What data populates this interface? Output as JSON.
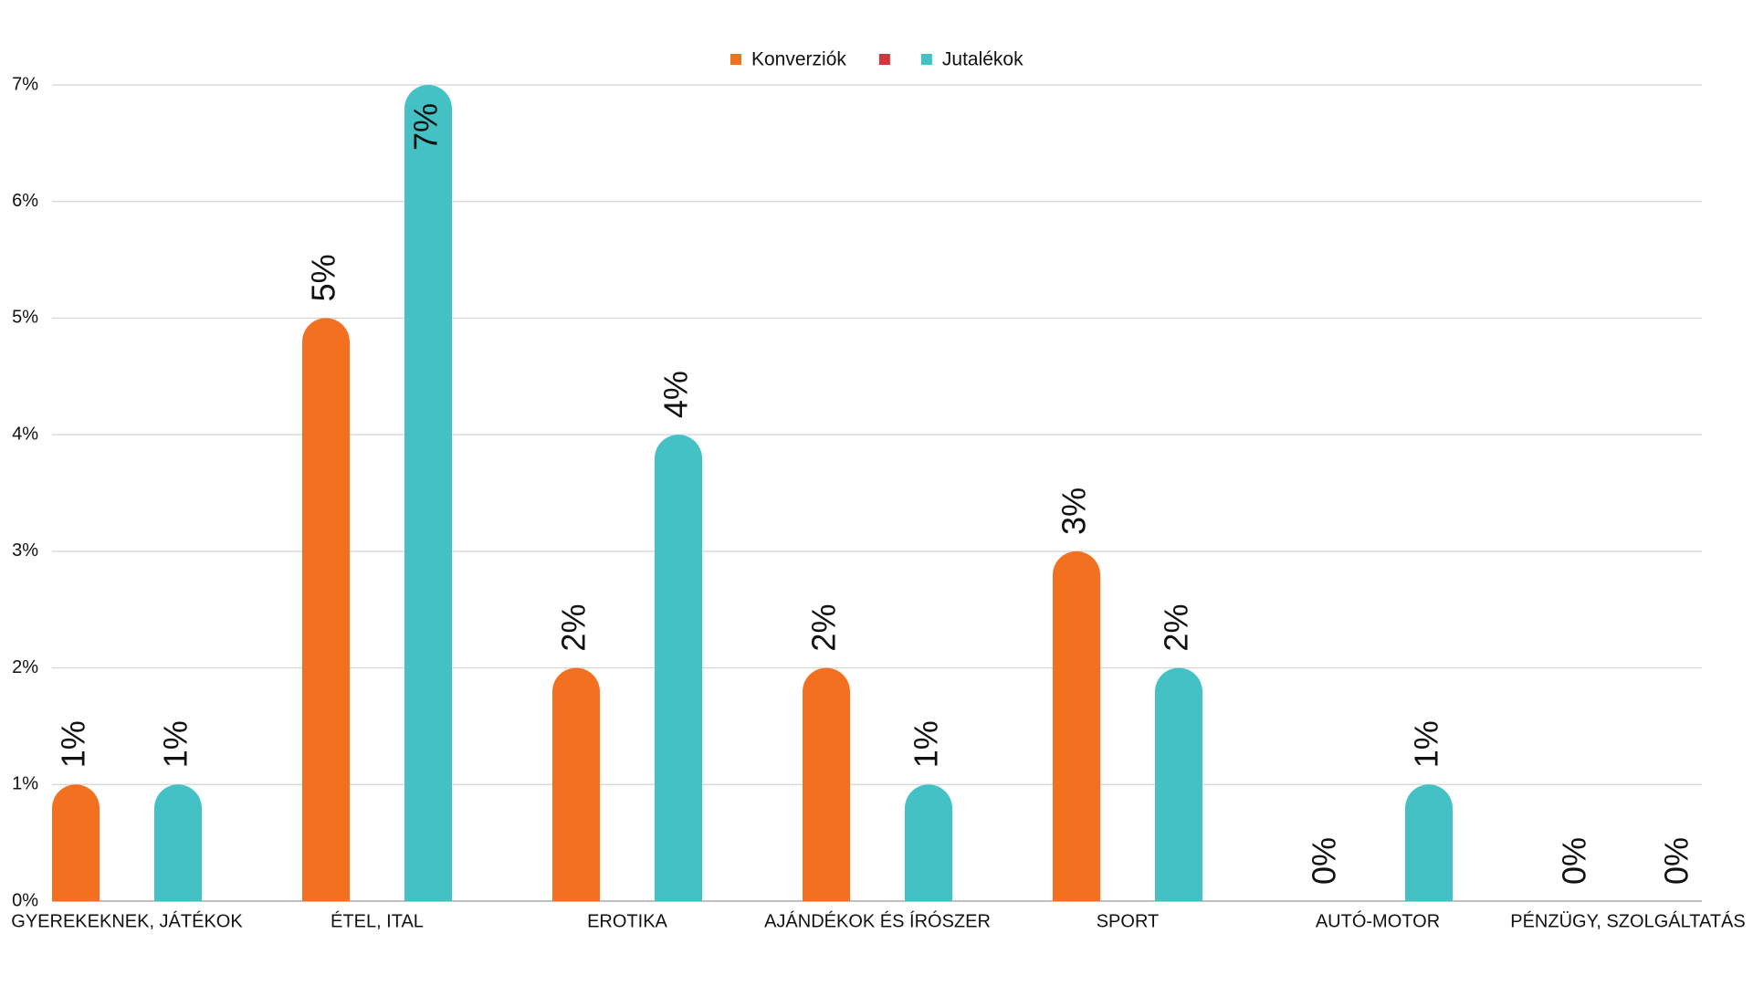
{
  "chart_data": {
    "type": "bar",
    "categories": [
      "GYEREKEKNEK, JÁTÉKOK",
      "ÉTEL, ITAL",
      "EROTIKA",
      "AJÁNDÉKOK ÉS ÍRÓSZER",
      "SPORT",
      "AUTÓ-MOTOR",
      "PÉNZÜGY, SZOLGÁLTATÁS"
    ],
    "series": [
      {
        "name": "Konverziók",
        "color": "#f37021",
        "values": [
          1,
          5,
          2,
          2,
          3,
          0,
          0
        ],
        "value_labels": [
          "1%",
          "5%",
          "2%",
          "2%",
          "3%",
          "0%",
          "0%"
        ]
      },
      {
        "name": null,
        "color": "#d7343f",
        "values": [
          null,
          null,
          null,
          null,
          null,
          null,
          null
        ]
      },
      {
        "name": "Jutalékok",
        "color": "#43c1c5",
        "values": [
          1,
          7,
          4,
          1,
          2,
          1,
          0
        ],
        "value_labels": [
          "1%",
          "7%",
          "4%",
          "1%",
          "2%",
          "1%",
          "0%"
        ]
      }
    ],
    "ylim": [
      0,
      7
    ],
    "yticks": [
      {
        "value": 0,
        "label": "0%"
      },
      {
        "value": 1,
        "label": "1%"
      },
      {
        "value": 2,
        "label": "2%"
      },
      {
        "value": 3,
        "label": "3%"
      },
      {
        "value": 4,
        "label": "4%"
      },
      {
        "value": 5,
        "label": "5%"
      },
      {
        "value": 6,
        "label": "6%"
      },
      {
        "value": 7,
        "label": "7%"
      }
    ],
    "grid": true,
    "legend": "top"
  }
}
